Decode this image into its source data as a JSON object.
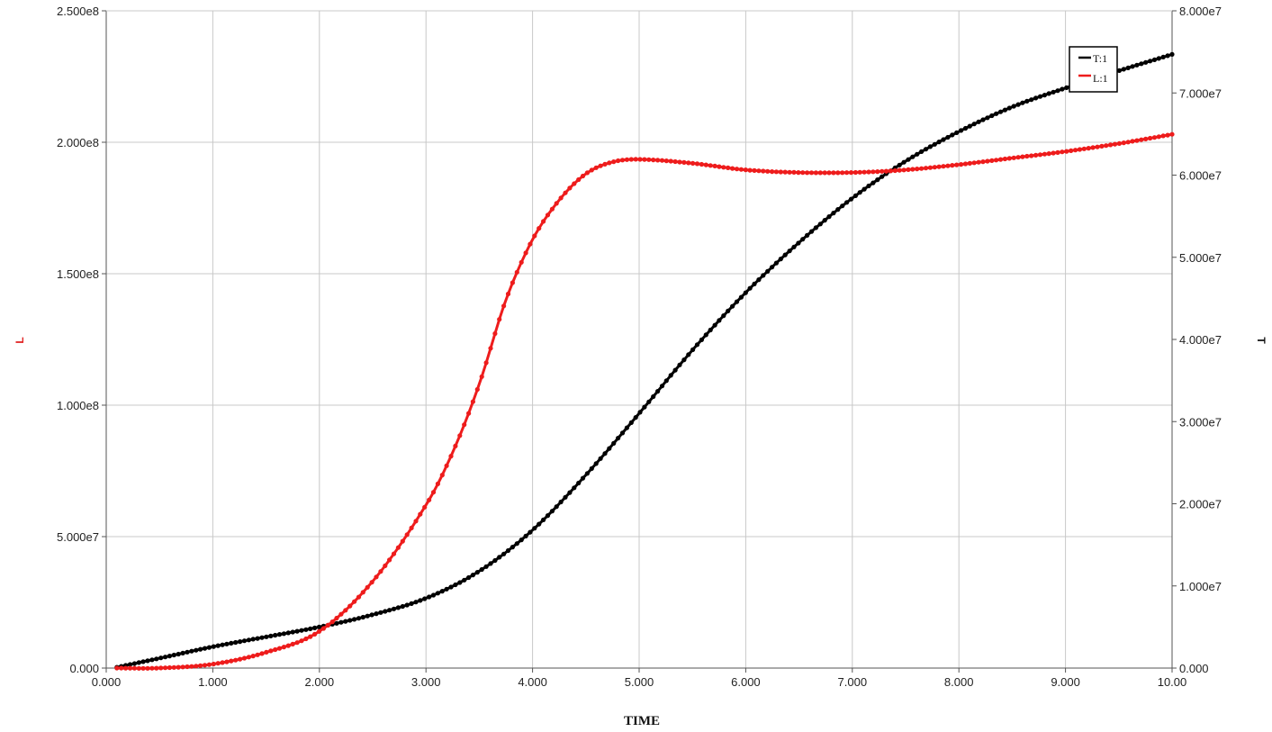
{
  "chart_data": {
    "type": "line",
    "xlabel": "TIME",
    "ylabel_left": "L",
    "ylabel_right": "T",
    "xlim": [
      0.0,
      10.0
    ],
    "ylim_left": [
      0.0,
      250000000
    ],
    "ylim_right": [
      0.0,
      80000000
    ],
    "x_ticks": [
      "0.000",
      "1.000",
      "2.000",
      "3.000",
      "4.000",
      "5.000",
      "6.000",
      "7.000",
      "8.000",
      "9.000",
      "10.00"
    ],
    "y_left_ticks": [
      "0.000",
      "5.000e7",
      "1.000e8",
      "1.500e8",
      "2.000e8",
      "2.500e8"
    ],
    "y_right_ticks": [
      "0.000",
      "1.000e7",
      "2.000e7",
      "3.000e7",
      "4.000e7",
      "5.000e7",
      "6.000e7",
      "7.000e7",
      "8.000e7"
    ],
    "grid": true,
    "legend_position": "top-right",
    "legend": [
      "T:1",
      "L:1"
    ],
    "series": [
      {
        "name": "T:1",
        "axis": "right",
        "color": "#000000",
        "x": [
          0.1,
          0.5,
          1.0,
          1.5,
          2.0,
          2.5,
          3.0,
          3.5,
          4.0,
          4.5,
          5.0,
          5.5,
          6.0,
          6.5,
          7.0,
          7.5,
          8.0,
          8.5,
          9.0,
          9.5,
          10.0
        ],
        "y": [
          100000,
          1200000,
          2600000,
          3800000,
          5000000,
          6500000,
          8500000,
          11800000,
          16800000,
          23500000,
          31000000,
          38700000,
          45700000,
          51800000,
          57200000,
          61700000,
          65300000,
          68300000,
          70600000,
          72700000,
          74700000
        ]
      },
      {
        "name": "L:1",
        "axis": "left",
        "color": "#ee1c1c",
        "x": [
          0.1,
          0.5,
          1.0,
          1.5,
          2.0,
          2.5,
          3.0,
          3.25,
          3.5,
          3.75,
          4.0,
          4.25,
          4.5,
          4.75,
          5.0,
          5.5,
          6.0,
          6.5,
          7.0,
          7.5,
          8.0,
          8.5,
          9.0,
          9.5,
          10.0
        ],
        "y": [
          0,
          0,
          1500000,
          6000000,
          14000000,
          33000000,
          62000000,
          82000000,
          108000000,
          140000000,
          163000000,
          178000000,
          188000000,
          192500000,
          193500000,
          192000000,
          189500000,
          188500000,
          188500000,
          189500000,
          191500000,
          194000000,
          196500000,
          199500000,
          203000000
        ]
      }
    ]
  }
}
